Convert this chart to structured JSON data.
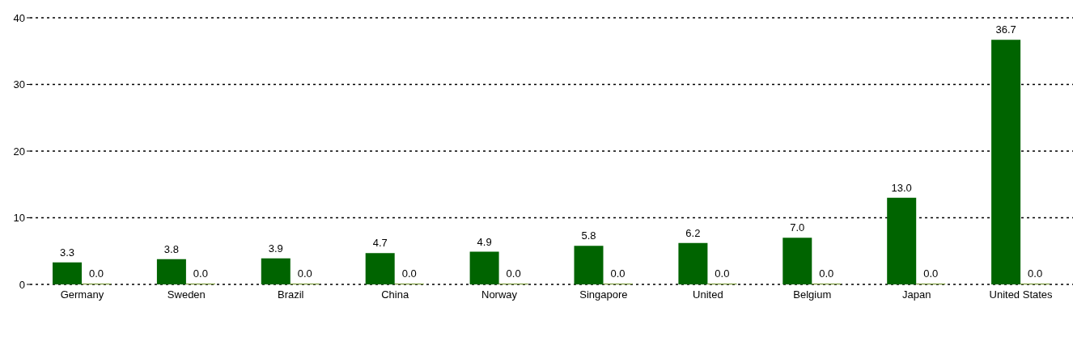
{
  "chart_data": {
    "type": "bar",
    "categories": [
      "Germany",
      "Sweden",
      "Brazil",
      "China",
      "Norway",
      "Singapore",
      "United",
      "Belgium",
      "Japan",
      "United States"
    ],
    "series": [
      {
        "color": "#006400",
        "values": [
          3.3,
          3.8,
          3.9,
          4.7,
          4.9,
          5.8,
          6.2,
          7.0,
          13.0,
          36.7
        ],
        "value_labels": [
          "3.3",
          "3.8",
          "3.9",
          "4.7",
          "4.9",
          "5.8",
          "6.2",
          "7.0",
          "13.0",
          "36.7"
        ]
      },
      {
        "color": "#6b8e23",
        "values": [
          0,
          0,
          0,
          0,
          0,
          0,
          0,
          0,
          0,
          0
        ],
        "value_labels": [
          "0.0",
          "0.0",
          "0.0",
          "0.0",
          "0.0",
          "0.0",
          "0.0",
          "0.0",
          "0.0",
          "0.0"
        ]
      }
    ],
    "ylim": [
      0,
      40
    ],
    "yticks": [
      0,
      10,
      20,
      30,
      40
    ],
    "grid": "y"
  }
}
